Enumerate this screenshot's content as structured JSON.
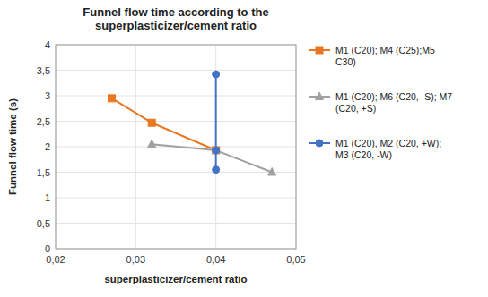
{
  "chart_data": {
    "type": "line",
    "title": "Funnel flow time according to the\nsuperplasticizer/cement ratio",
    "x_label": "superplasticizer/cement ratio",
    "y_label": "Funnel flow time (s)",
    "xlim": [
      0.02,
      0.05
    ],
    "ylim": [
      0,
      4
    ],
    "xticks": [
      {
        "value": 0.02,
        "label": "0,02"
      },
      {
        "value": 0.03,
        "label": "0,03"
      },
      {
        "value": 0.04,
        "label": "0,04"
      },
      {
        "value": 0.05,
        "label": "0,05"
      }
    ],
    "yticks": [
      0,
      {
        "value": 0.5,
        "label": "0,5"
      },
      1,
      {
        "value": 1.5,
        "label": "1,5"
      },
      2,
      {
        "value": 2.5,
        "label": "2,5"
      },
      3,
      {
        "value": 3.5,
        "label": "3,5"
      },
      4
    ],
    "grid": true,
    "legend": "right",
    "series": [
      {
        "name": "M1 (C20); M4 (C25);M5\nC30)",
        "color": "#E87722",
        "marker": "square",
        "x": [
          0.027,
          0.032,
          0.04
        ],
        "values": [
          2.95,
          2.47,
          1.93
        ]
      },
      {
        "name": "M1 (C20); M6 (C20, -S); M7\n(C20, +S)",
        "color": "#A0A0A0",
        "marker": "triangle",
        "x": [
          0.032,
          0.04,
          0.047
        ],
        "values": [
          2.05,
          1.93,
          1.5
        ]
      },
      {
        "name": "M1 (C20), M2 (C20, +W);\nM3 (C20, -W)",
        "color": "#4472C4",
        "marker": "circle",
        "x": [
          0.04,
          0.04,
          0.04
        ],
        "values": [
          3.42,
          1.93,
          1.55
        ]
      }
    ]
  }
}
